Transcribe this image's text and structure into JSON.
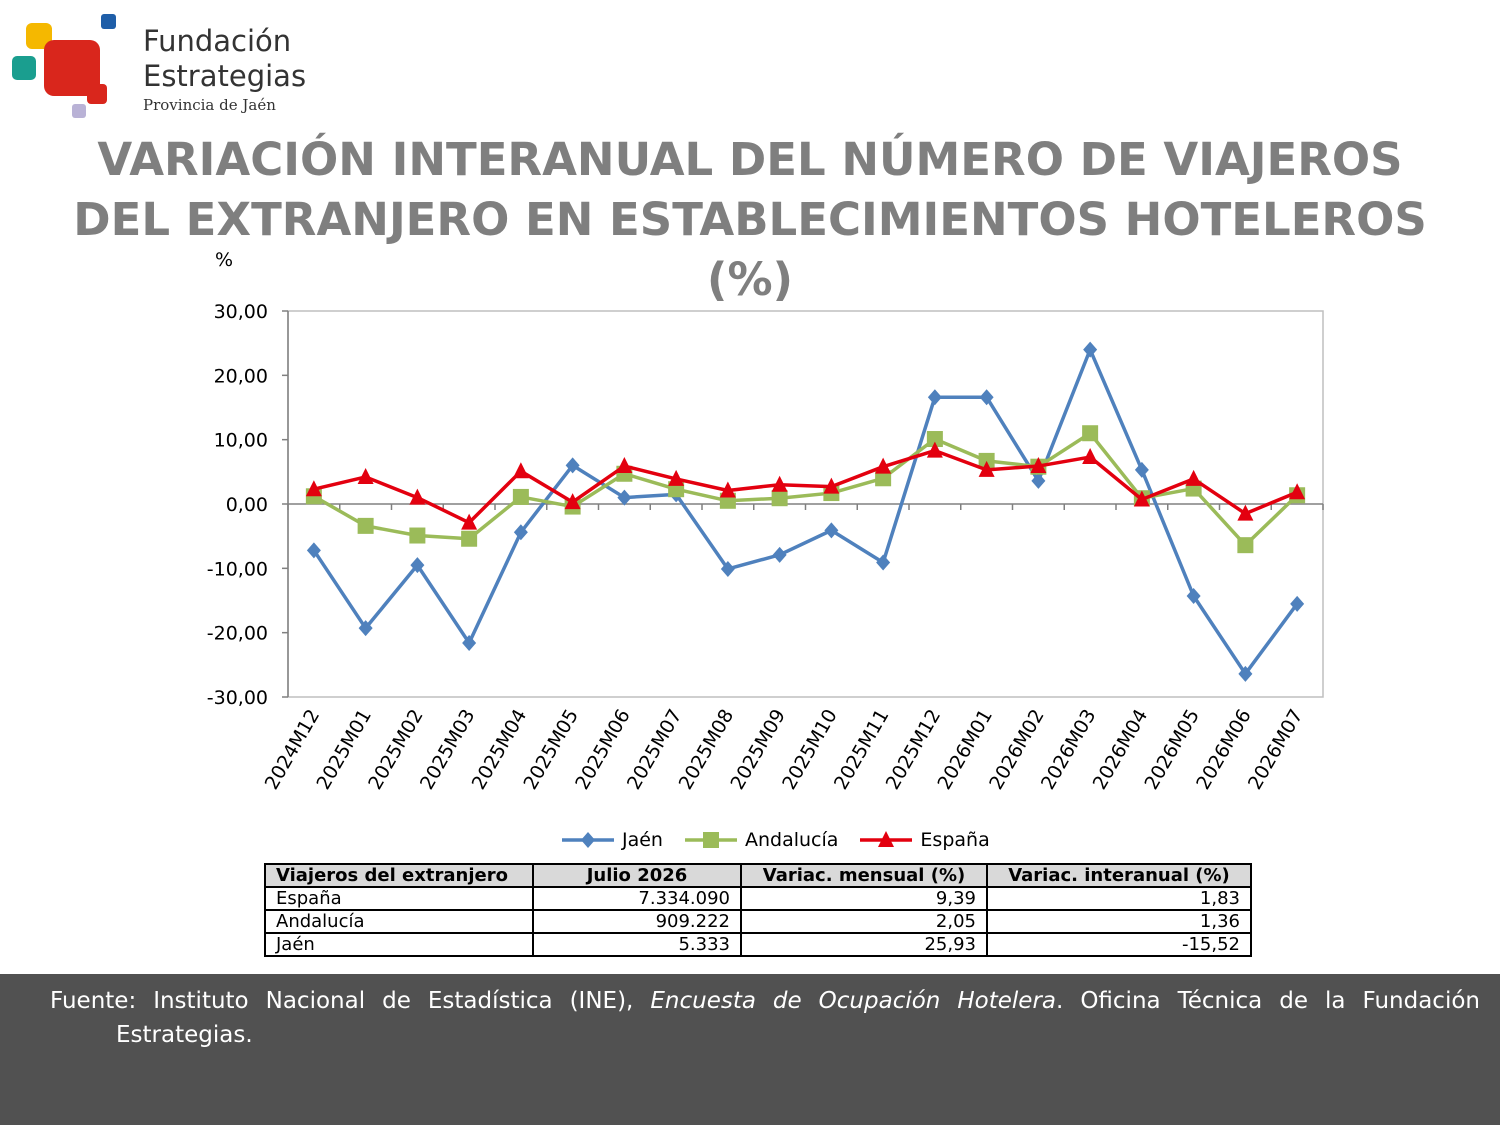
{
  "logo": {
    "line1": "Fundación",
    "line2": "Estrategias",
    "line3": "Provincia de Jaén",
    "colors": {
      "red": "#d9261c",
      "yellow": "#f5b800",
      "teal": "#1a9e8f",
      "blue": "#1f5ea8",
      "lavender": "#b9b2d6"
    }
  },
  "title": {
    "line1": "VARIACIÓN INTERANUAL DEL NÚMERO DE VIAJEROS",
    "line2": "DEL EXTRANJERO EN ESTABLECIMIENTOS HOTELEROS",
    "line3": "(%)"
  },
  "chart_data": {
    "type": "line",
    "ylabel": "%",
    "ylim": [
      -30,
      30
    ],
    "yticks": [
      "30,00",
      "20,00",
      "10,00",
      "0,00",
      "-10,00",
      "-20,00",
      "-30,00"
    ],
    "grid": false,
    "legend_position": "bottom",
    "categories": [
      "2024M12",
      "2025M01",
      "2025M02",
      "2025M03",
      "2025M04",
      "2025M05",
      "2025M06",
      "2025M07",
      "2025M08",
      "2025M09",
      "2025M10",
      "2025M11",
      "2025M12",
      "2026M01",
      "2026M02",
      "2026M03",
      "2026M04",
      "2026M05",
      "2026M06",
      "2026M07"
    ],
    "series": [
      {
        "name": "Jaén",
        "color": "#4f81bd",
        "marker": "diamond",
        "values": [
          -7.2,
          -19.3,
          -9.5,
          -21.6,
          -4.4,
          6.0,
          1.0,
          1.5,
          -10.1,
          -7.9,
          -4.1,
          -9.1,
          16.6,
          16.6,
          3.6,
          24.0,
          5.3,
          -14.3,
          -26.4,
          -15.52
        ]
      },
      {
        "name": "Andalucía",
        "color": "#9bbb59",
        "marker": "square",
        "values": [
          1.2,
          -3.4,
          -4.9,
          -5.4,
          1.1,
          -0.4,
          4.7,
          2.3,
          0.5,
          0.9,
          1.7,
          4.0,
          10.1,
          6.7,
          5.8,
          11.0,
          0.9,
          2.4,
          -6.4,
          1.36
        ]
      },
      {
        "name": "España",
        "color": "#e3000f",
        "marker": "triangle",
        "values": [
          2.3,
          4.2,
          1.0,
          -2.9,
          5.1,
          0.3,
          5.9,
          3.9,
          2.1,
          3.0,
          2.7,
          5.8,
          8.3,
          5.3,
          5.9,
          7.3,
          0.7,
          3.9,
          -1.5,
          1.83
        ]
      }
    ]
  },
  "table": {
    "headers": [
      "Viajeros del extranjero",
      "Julio 2026",
      "Variac. mensual (%)",
      "Variac. interanual (%)"
    ],
    "rows": [
      [
        "España",
        "7.334.090",
        "9,39",
        "1,83"
      ],
      [
        "Andalucía",
        "909.222",
        "2,05",
        "1,36"
      ],
      [
        "Jaén",
        "5.333",
        "25,93",
        "-15,52"
      ]
    ]
  },
  "footer": {
    "prefix": "Fuente: Instituto Nacional de Estadística (INE), ",
    "italic": "Encuesta de Ocupación Hotelera",
    "suffix": ". Oficina Técnica de la Fundación",
    "line2": "Estrategias."
  }
}
